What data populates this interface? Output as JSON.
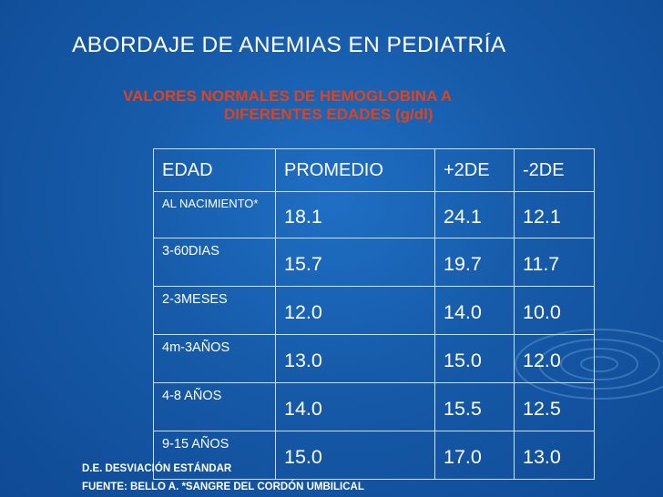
{
  "slide": {
    "title": "ABORDAJE DE ANEMIAS EN PEDIATRÍA",
    "subtitle_line1": "VALORES NORMALES DE HEMOGLOBINA A",
    "subtitle_line2": "DIFERENTES EDADES (g/dl)",
    "accent_color": "#e0431c",
    "background_color": "#165aa8"
  },
  "table": {
    "headers": [
      "EDAD",
      "PROMEDIO",
      "+2DE",
      "-2DE"
    ],
    "rows": [
      [
        "AL NACIMIENTO*",
        "18.1",
        "24.1",
        "12.1"
      ],
      [
        "3-60DIAS",
        "15.7",
        "19.7",
        "11.7"
      ],
      [
        "2-3MESES",
        "12.0",
        "14.0",
        "10.0"
      ],
      [
        "4m-3AÑOS",
        "13.0",
        "15.0",
        "12.0"
      ],
      [
        "4-8 AÑOS",
        "14.0",
        "15.5",
        "12.5"
      ],
      [
        "9-15 AÑOS",
        "15.0",
        "17.0",
        "13.0"
      ]
    ]
  },
  "footer": {
    "line1": "D.E. DESVIACIÓN ESTÁNDAR",
    "line2": "FUENTE: BELLO A.  *SANGRE DEL CORDÓN UMBILICAL"
  }
}
